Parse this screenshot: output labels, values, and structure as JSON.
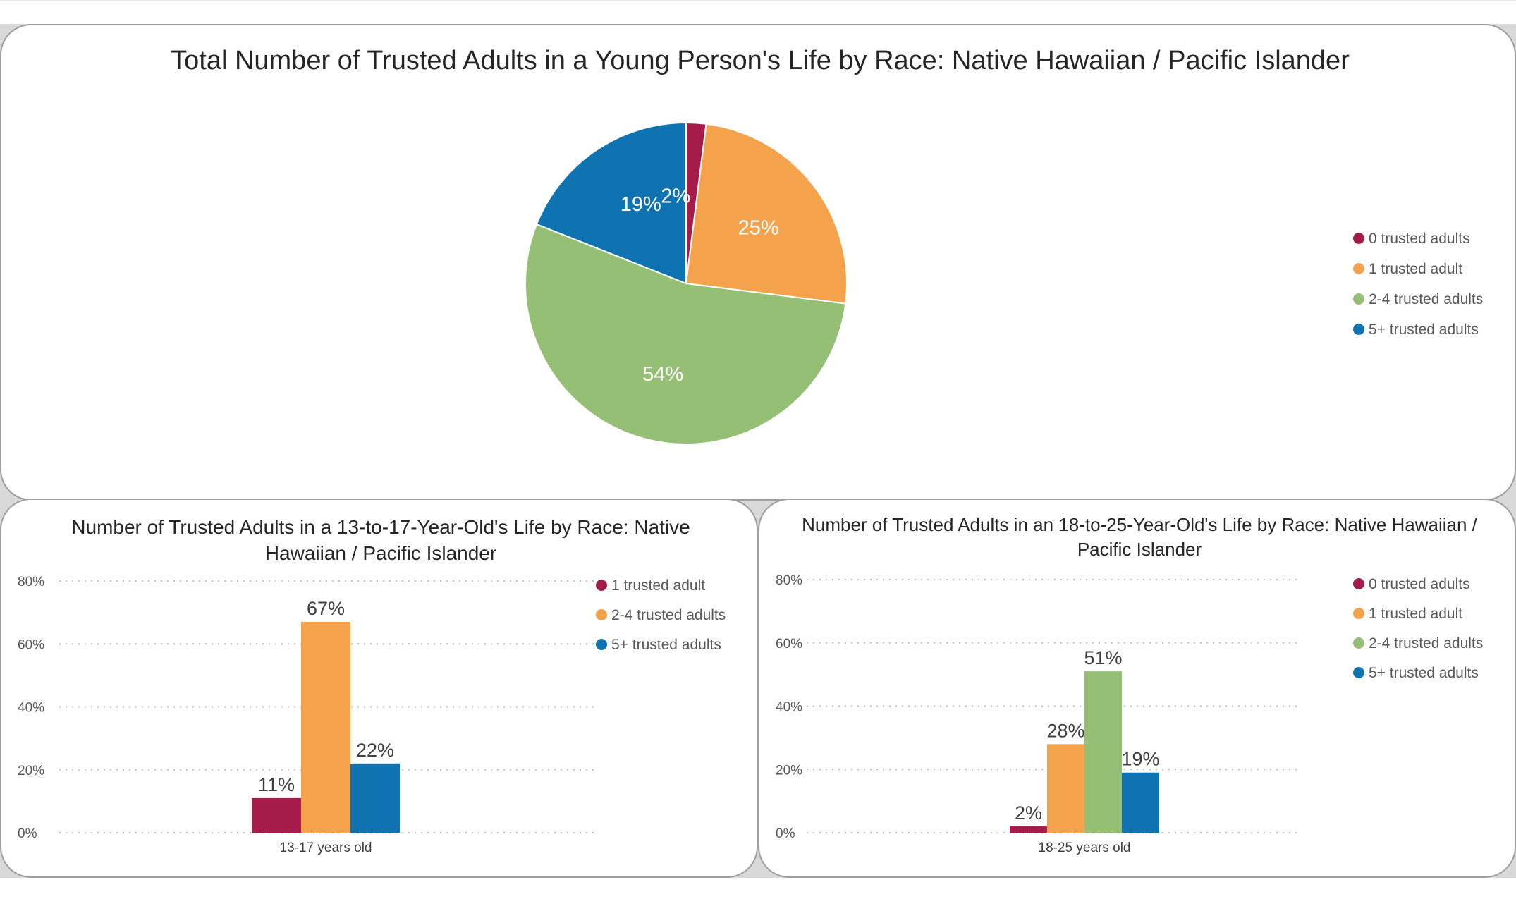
{
  "colors": {
    "zero": "#a51c4a",
    "one": "#f4a34c",
    "two_four": "#95bf75",
    "five_plus": "#1073b1"
  },
  "chart_data": [
    {
      "type": "pie",
      "title": "Total Number of Trusted Adults in a Young Person's Life by Race: Native Hawaiian / Pacific Islander",
      "categories": [
        "0 trusted adults",
        "1 trusted adult",
        "2-4 trusted adults",
        "5+ trusted adults"
      ],
      "values": [
        2,
        25,
        54,
        19
      ],
      "labels": [
        "2%",
        "25%",
        "54%",
        "19%"
      ],
      "legend_position": "right"
    },
    {
      "type": "bar",
      "title": "Number of Trusted Adults in a 13-to-17-Year-Old's Life by Race: Native Hawaiian / Pacific Islander",
      "title_lines": [
        "Number of Trusted Adults in a 13-to-17-Year-Old's Life by Race: Native",
        "Hawaiian / Pacific Islander"
      ],
      "categories": [
        "13-17 years old"
      ],
      "series": [
        {
          "name": "1 trusted adult",
          "values": [
            11
          ],
          "label": "11%",
          "color_key": "zero"
        },
        {
          "name": "2-4 trusted adults",
          "values": [
            67
          ],
          "label": "67%",
          "color_key": "one"
        },
        {
          "name": "5+ trusted adults",
          "values": [
            22
          ],
          "label": "22%",
          "color_key": "five_plus"
        }
      ],
      "y_ticks": [
        "0%",
        "20%",
        "40%",
        "60%",
        "80%"
      ],
      "ylim": [
        0,
        80
      ],
      "grid": true,
      "legend_position": "top-right"
    },
    {
      "type": "bar",
      "title": "Number of Trusted Adults in an 18-to-25-Year-Old's Life by Race: Native Hawaiian / Pacific Islander",
      "title_lines": [
        "Number of Trusted Adults in an 18-to-25-Year-Old's Life by Race: Native Hawaiian /",
        "Pacific Islander"
      ],
      "categories": [
        "18-25 years old"
      ],
      "series": [
        {
          "name": "0 trusted adults",
          "values": [
            2
          ],
          "label": "2%",
          "color_key": "zero"
        },
        {
          "name": "1 trusted adult",
          "values": [
            28
          ],
          "label": "28%",
          "color_key": "one"
        },
        {
          "name": "2-4 trusted adults",
          "values": [
            51
          ],
          "label": "51%",
          "color_key": "two_four"
        },
        {
          "name": "5+ trusted adults",
          "values": [
            19
          ],
          "label": "19%",
          "color_key": "five_plus"
        }
      ],
      "y_ticks": [
        "0%",
        "20%",
        "40%",
        "60%",
        "80%"
      ],
      "ylim": [
        0,
        80
      ],
      "grid": true,
      "legend_position": "top-right"
    }
  ]
}
